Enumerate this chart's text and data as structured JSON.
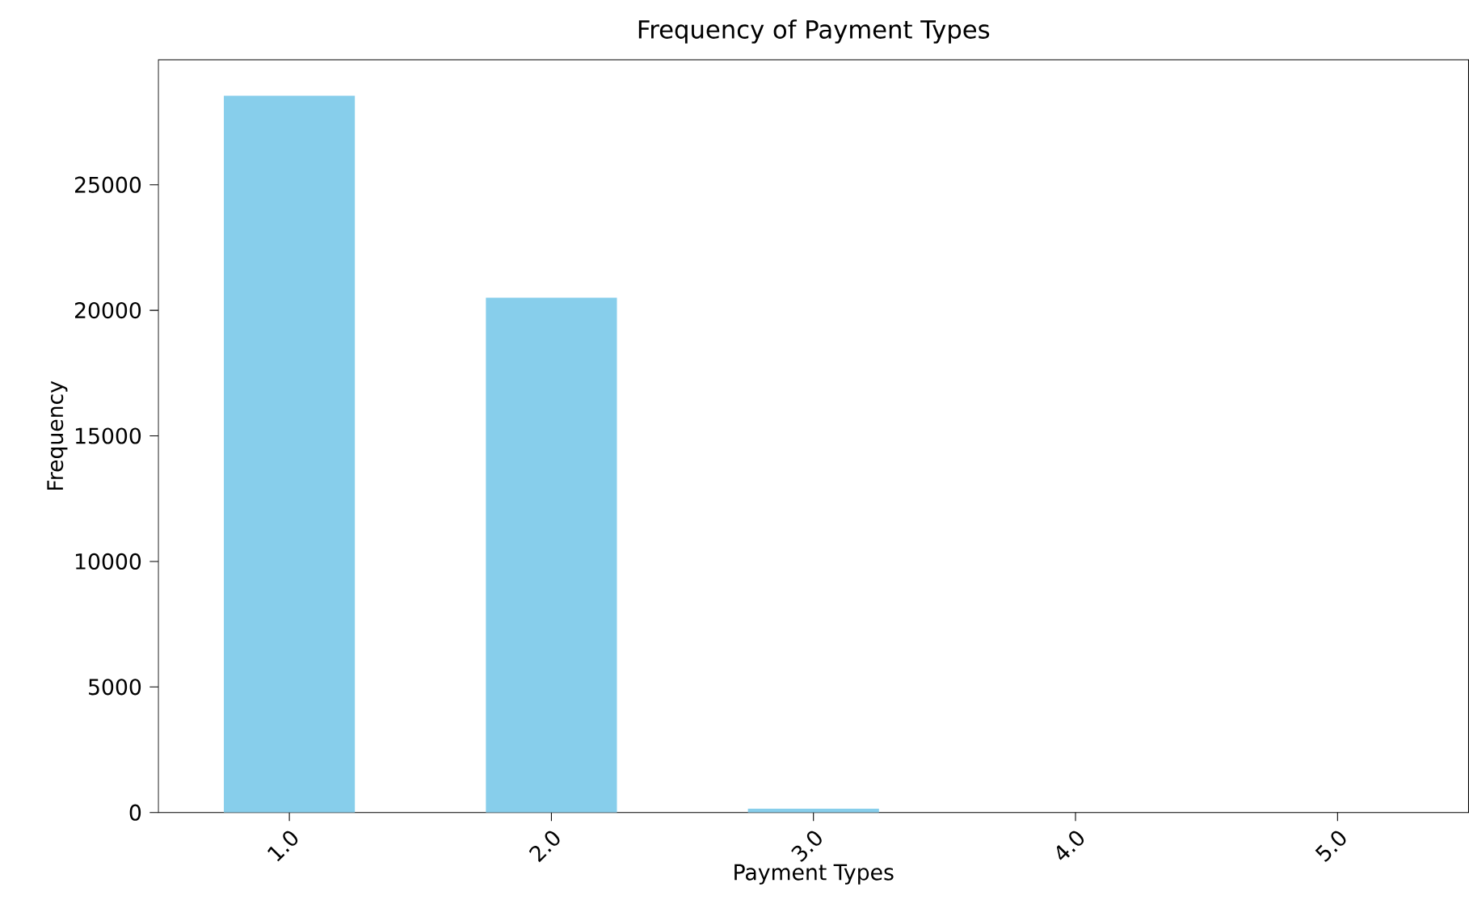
{
  "chart_data": {
    "type": "bar",
    "title": "Frequency of Payment Types",
    "xlabel": "Payment Types",
    "ylabel": "Frequency",
    "categories": [
      "1.0",
      "2.0",
      "3.0",
      "4.0",
      "5.0"
    ],
    "values": [
      28550,
      20500,
      150,
      0,
      0
    ],
    "color": "#87ceeb",
    "ylim": [
      0,
      29980
    ],
    "yticks": [
      0,
      5000,
      10000,
      15000,
      20000,
      25000
    ]
  }
}
